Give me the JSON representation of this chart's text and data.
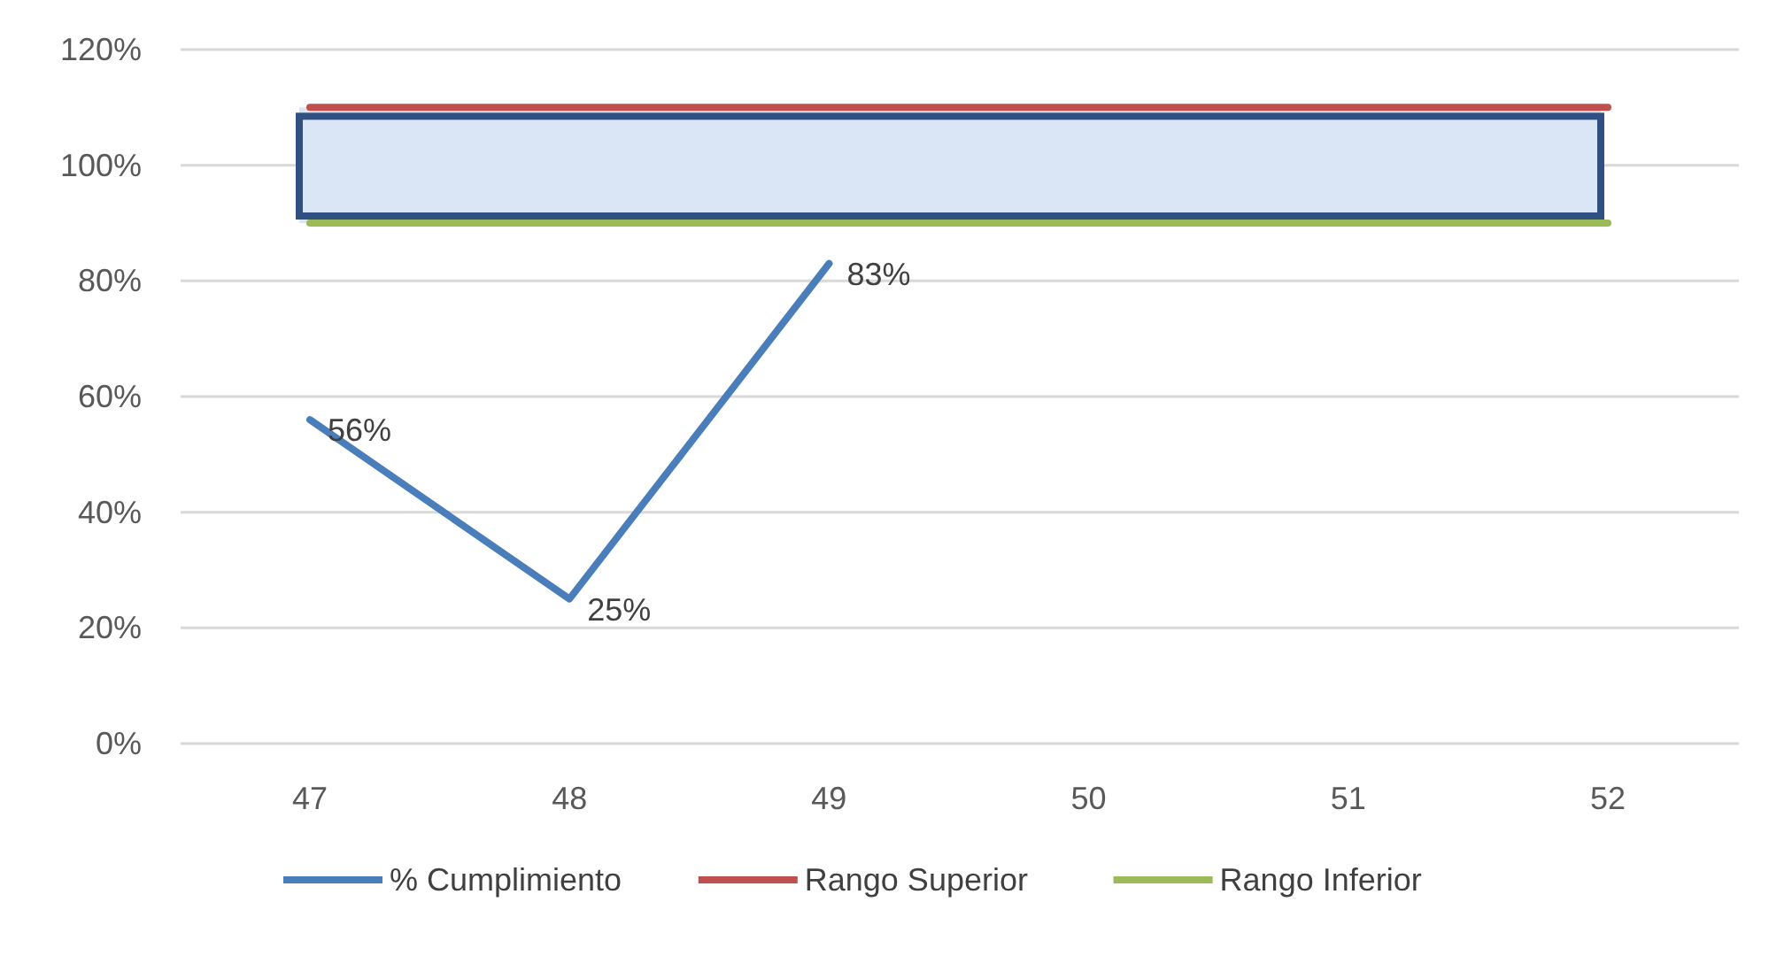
{
  "chart_data": {
    "type": "line",
    "categories": [
      "47",
      "48",
      "49",
      "50",
      "51",
      "52"
    ],
    "series": [
      {
        "name": "% Cumplimiento",
        "color": "#4a7ebb",
        "values": [
          56,
          25,
          83,
          null,
          null,
          null
        ],
        "value_labels": [
          "56%",
          "25%",
          "83%",
          null,
          null,
          null
        ]
      },
      {
        "name": "Rango Superior",
        "color": "#c0504d",
        "values": [
          110,
          110,
          110,
          110,
          110,
          110
        ]
      },
      {
        "name": "Rango Inferior",
        "color": "#9bbb59",
        "values": [
          90,
          90,
          90,
          90,
          90,
          90
        ]
      }
    ],
    "bands": [
      {
        "axis": "y",
        "from": 90,
        "to": 110,
        "color": "#dae5f5"
      }
    ],
    "ylim": [
      0,
      120
    ],
    "yticks": [
      {
        "value": 0,
        "label": "0%"
      },
      {
        "value": 20,
        "label": "20%"
      },
      {
        "value": 40,
        "label": "40%"
      },
      {
        "value": 60,
        "label": "60%"
      },
      {
        "value": 80,
        "label": "80%"
      },
      {
        "value": 100,
        "label": "100%"
      },
      {
        "value": 120,
        "label": "120%"
      }
    ],
    "grid": "y",
    "legend": "bottom",
    "marker": "none",
    "line_style": "solid"
  }
}
